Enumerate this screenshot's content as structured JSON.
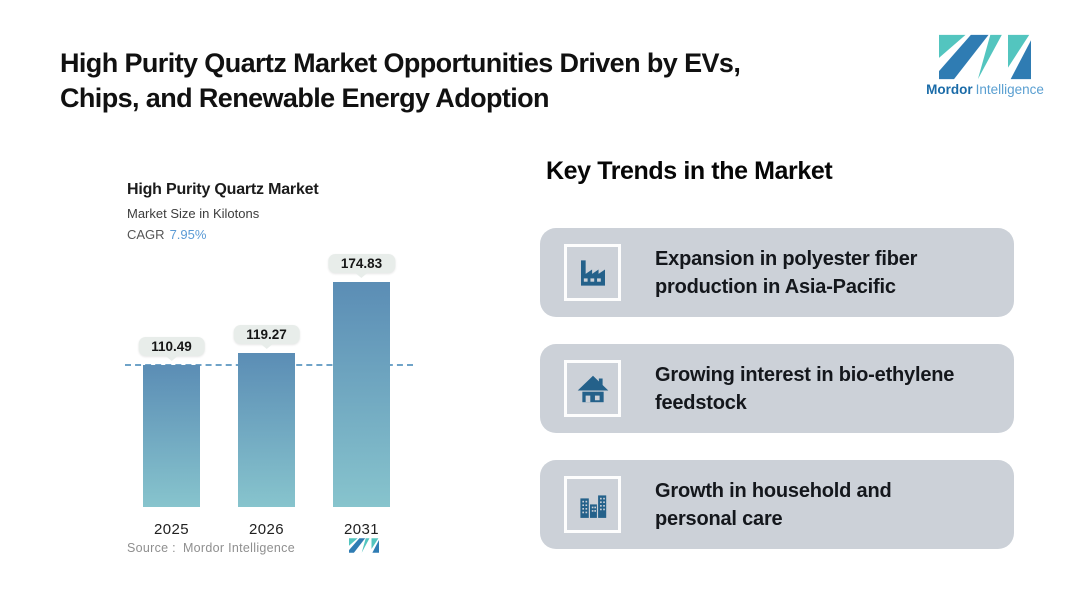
{
  "header": {
    "title_line1": "High Purity Quartz Market Opportunities Driven by EVs,",
    "title_line2": "Chips, and Renewable Energy Adoption"
  },
  "logo": {
    "brand_bold": "Mordor",
    "brand_light": "Intelligence"
  },
  "chart_data": {
    "type": "bar",
    "title": "High Purity Quartz Market",
    "subtitle": "Market Size in Kilotons",
    "cagr_label": "CAGR",
    "cagr": "7.95%",
    "categories": [
      "2025",
      "2026",
      "2031"
    ],
    "values": [
      110.49,
      119.27,
      174.83
    ],
    "ylim": [
      0,
      200
    ],
    "grid": false,
    "legend": false,
    "reference_line": 110.49,
    "reference_line_color": "#6FA3C8",
    "bar_gradient_top": "#5B8DB5",
    "bar_gradient_bottom": "#87C4CD",
    "source_label": "Source :",
    "source_brand": "Mordor Intelligence"
  },
  "trends": {
    "heading": "Key Trends in the Market",
    "cards": [
      {
        "icon": "factory-icon",
        "line1": "Expansion in polyester fiber",
        "line2": "production in Asia-Pacific",
        "text": "Expansion in polyester fiber production in Asia-Pacific"
      },
      {
        "icon": "house-icon",
        "line1": "Growing interest in bio-ethylene",
        "line2": "feedstock",
        "text": "Growing interest in bio-ethylene feedstock"
      },
      {
        "icon": "buildings-icon",
        "line1": "Growth in household and",
        "line2": "personal care",
        "text": "Growth in household and personal care"
      }
    ]
  },
  "colors": {
    "accent_teal": "#53C5BF",
    "accent_blue": "#2F7CB3",
    "card_background": "#CCD1D8",
    "icon_blue": "#24618A",
    "cagr_value": "#5B9BD5",
    "bar_top": "#5B8DB5",
    "bar_bottom": "#87C4CD",
    "reference_line": "#6FA3C8",
    "value_bubble": "#E8EDEA"
  }
}
